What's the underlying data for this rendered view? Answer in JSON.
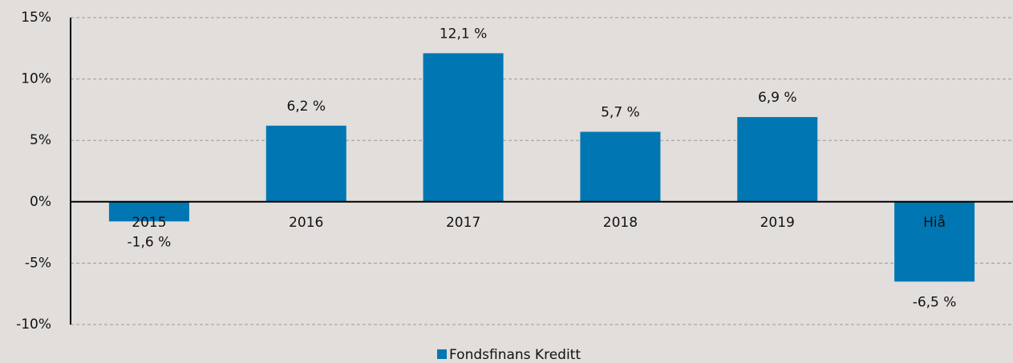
{
  "chart_data": {
    "type": "bar",
    "categories": [
      "2015",
      "2016",
      "2017",
      "2018",
      "2019",
      "Hiå"
    ],
    "series": [
      {
        "name": "Fondsfinans Kreditt",
        "color": "#0077b3",
        "values": [
          -1.6,
          6.2,
          12.1,
          5.7,
          6.9,
          -6.5
        ],
        "value_labels": [
          "-1,6 %",
          "6,2 %",
          "12,1 %",
          "5,7 %",
          "6,9 %",
          "-6,5 %"
        ]
      }
    ],
    "ylim": [
      -10,
      15
    ],
    "yticks": [
      {
        "value": -10,
        "label": "-10%"
      },
      {
        "value": -5,
        "label": "-5%"
      },
      {
        "value": 0,
        "label": "0%"
      },
      {
        "value": 5,
        "label": "5%"
      },
      {
        "value": 10,
        "label": "10%"
      },
      {
        "value": 15,
        "label": "15%"
      }
    ],
    "grid": true,
    "legend": "bottom"
  }
}
